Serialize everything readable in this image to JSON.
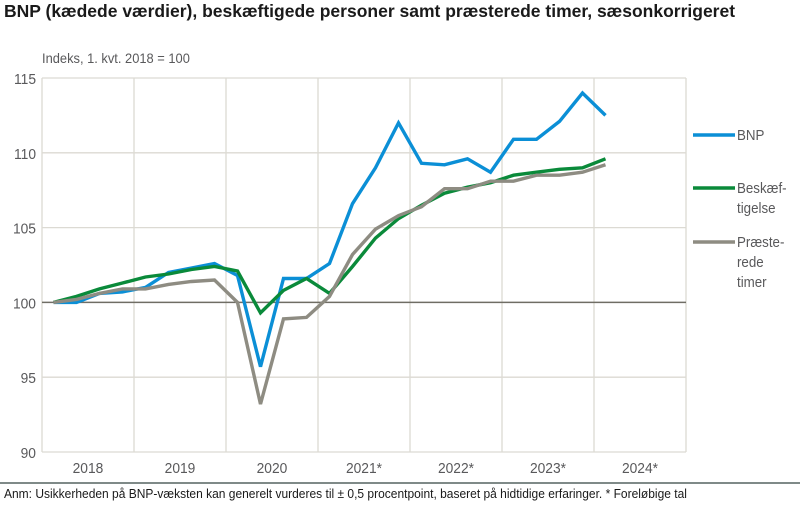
{
  "header": {
    "title": "BNP (kædede værdier), beskæftigede personer samt præsterede timer, sæsonkorrigeret",
    "subtitle": "Indeks, 1. kvt. 2018  = 100"
  },
  "footer": {
    "note": "Anm: Usikkerheden på BNP-væksten kan generelt vurderes til ± 0,5 procentpoint, baseret på hidtidige erfaringer. * Foreløbige tal"
  },
  "colors": {
    "bnp": "#0b8fd6",
    "beskaeftigelse": "#0a8a3a",
    "timer": "#8e8c82",
    "grid": "#dcdad3",
    "baseline": "#6f6d64",
    "text": "#59595b"
  },
  "legend": [
    {
      "key": "bnp",
      "lines": [
        "BNP"
      ]
    },
    {
      "key": "beskaeftigelse",
      "lines": [
        "Beskæf-",
        "tigelse"
      ]
    },
    {
      "key": "timer",
      "lines": [
        "Præste-",
        "rede",
        "timer"
      ]
    }
  ],
  "chart_data": {
    "type": "line",
    "title": "BNP (kædede værdier), beskæftigede personer samt præsterede timer, sæsonkorrigeret",
    "subtitle": "Indeks, 1. kvt. 2018  = 100",
    "xlabel": "",
    "ylabel": "Indeks, 1. kvt. 2018 = 100",
    "ylim": [
      90,
      115
    ],
    "yticks": [
      90,
      95,
      100,
      105,
      110,
      115
    ],
    "x_year_labels": [
      "2018",
      "2019",
      "2020",
      "2021*",
      "2022*",
      "2023*",
      "2024*"
    ],
    "grid": true,
    "baseline": 100,
    "legend_position": "right",
    "x": [
      "2018K1",
      "2018K2",
      "2018K3",
      "2018K4",
      "2019K1",
      "2019K2",
      "2019K3",
      "2019K4",
      "2020K1",
      "2020K2",
      "2020K3",
      "2020K4",
      "2021K1",
      "2021K2",
      "2021K3",
      "2021K4",
      "2022K1",
      "2022K2",
      "2022K3",
      "2022K4",
      "2023K1",
      "2023K2",
      "2023K3",
      "2023K4",
      "2024K1"
    ],
    "series": [
      {
        "name": "BNP",
        "values": [
          100.0,
          100.0,
          100.6,
          100.7,
          101.0,
          102.0,
          102.3,
          102.6,
          101.8,
          95.7,
          101.6,
          101.6,
          102.6,
          106.6,
          109.0,
          112.0,
          109.3,
          109.2,
          109.6,
          108.7,
          110.9,
          110.9,
          112.1,
          114.0,
          112.5
        ]
      },
      {
        "name": "Beskæftigelse",
        "values": [
          100.0,
          100.4,
          100.9,
          101.3,
          101.7,
          101.9,
          102.2,
          102.4,
          102.1,
          99.3,
          100.8,
          101.6,
          100.6,
          102.4,
          104.3,
          105.6,
          106.5,
          107.3,
          107.7,
          108.0,
          108.5,
          108.7,
          108.9,
          109.0,
          109.6
        ]
      },
      {
        "name": "Præsterede timer",
        "values": [
          100.0,
          100.2,
          100.6,
          100.9,
          100.9,
          101.2,
          101.4,
          101.5,
          100.0,
          93.2,
          98.9,
          99.0,
          100.4,
          103.2,
          104.9,
          105.8,
          106.4,
          107.6,
          107.6,
          108.1,
          108.1,
          108.5,
          108.5,
          108.7,
          109.2
        ]
      }
    ]
  }
}
